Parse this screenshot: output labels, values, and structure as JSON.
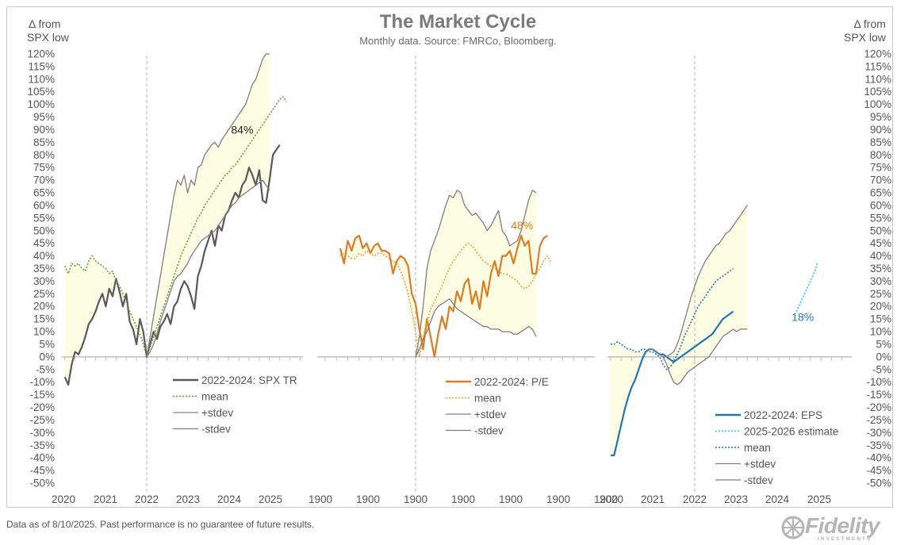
{
  "title": "The Market Cycle",
  "subtitle": "Monthly data.  Source: FMRCo, Bloomberg.",
  "y_axis_header_left": [
    "Δ from",
    "SPX low"
  ],
  "y_axis_header_right": [
    "Δ from",
    "SPX low"
  ],
  "footnote": "Data as of 8/10/2025. Past performance is no guarantee of future results.",
  "logo": {
    "name": "Fidelity",
    "tagline": "INVESTMENTS"
  },
  "colors": {
    "band": "#fdfde4",
    "spx": "#595959",
    "spx_mean": "#6b9a3a",
    "pe": "#e07b1f",
    "pe_mean": "#f0a030",
    "eps": "#1f77b4",
    "eps_estimate": "#33ccee",
    "eps_mean": "#1f77b4",
    "stdev": "#7f7f7f",
    "grid": "#bfbfbf"
  },
  "chart_data": [
    {
      "type": "line",
      "panel": "SPX total return",
      "x_tick_labels": [
        "2020",
        "2021",
        "2022",
        "2023",
        "2024",
        "2025"
      ],
      "ylim": [
        -50,
        120
      ],
      "y_tick_labels": [
        "120%",
        "115%",
        "110%",
        "105%",
        "100%",
        "95%",
        "90%",
        "85%",
        "80%",
        "75%",
        "70%",
        "65%",
        "60%",
        "55%",
        "50%",
        "45%",
        "40%",
        "35%",
        "30%",
        "25%",
        "20%",
        "15%",
        "10%",
        "5%",
        "0%",
        "-5%",
        "-10%",
        "-15%",
        "-20%",
        "-25%",
        "-30%",
        "-35%",
        "-40%",
        "-45%",
        "-50%"
      ],
      "legend": [
        "2022-2024: SPX TR",
        "mean",
        "+stdev",
        "-stdev"
      ],
      "annotation": {
        "text": "84%",
        "at_month": 28,
        "value": 84
      },
      "series": [
        {
          "name": "2022-2024: SPX TR",
          "x_start": -24,
          "values": [
            -8,
            -11,
            -3,
            2,
            1,
            4,
            8,
            13,
            15,
            18,
            22,
            25,
            20,
            27,
            24,
            31,
            26,
            20,
            25,
            14,
            11,
            5,
            15,
            10,
            0,
            5,
            10,
            7,
            12,
            14,
            17,
            13,
            20,
            22,
            27,
            30,
            28,
            24,
            19,
            32,
            36,
            42,
            46,
            50,
            44,
            52,
            50,
            56,
            58,
            62,
            65,
            63,
            68,
            70,
            75,
            72,
            68,
            74,
            62,
            61,
            70,
            80,
            82,
            84
          ]
        },
        {
          "name": "mean",
          "x_start": -24,
          "values": [
            36,
            33,
            37,
            36,
            37,
            35,
            34,
            38,
            40,
            38,
            37,
            36,
            35,
            33,
            34,
            30,
            28,
            25,
            22,
            18,
            15,
            12,
            9,
            5,
            0,
            4,
            8,
            12,
            16,
            20,
            24,
            28,
            32,
            36,
            40,
            43,
            46,
            49,
            52,
            55,
            57,
            60,
            62,
            64,
            66,
            68,
            70,
            72,
            73,
            75,
            76,
            78,
            80,
            82,
            84,
            86,
            88,
            90,
            92,
            94,
            96,
            98,
            100,
            102,
            103,
            101
          ]
        },
        {
          "name": "+stdev",
          "x_start": 0,
          "values": [
            0,
            8,
            16,
            24,
            32,
            40,
            48,
            56,
            64,
            70,
            68,
            72,
            65,
            70,
            68,
            75,
            76,
            80,
            82,
            84,
            85,
            83,
            86,
            88,
            90,
            92,
            94,
            96,
            98,
            100,
            104,
            108,
            110,
            114,
            118,
            120,
            120
          ]
        },
        {
          "name": "-stdev",
          "x_start": 0,
          "values": [
            0,
            2,
            5,
            9,
            14,
            18,
            22,
            26,
            30,
            32,
            33,
            35,
            37,
            40,
            42,
            44,
            46,
            47,
            48,
            49,
            50,
            52,
            54,
            56,
            58,
            60,
            61,
            63,
            64,
            65,
            66,
            67,
            68,
            69,
            70,
            68,
            66
          ]
        }
      ]
    },
    {
      "type": "line",
      "panel": "P/E",
      "x_tick_labels": [
        "1900",
        "1900",
        "1900",
        "1900",
        "1900",
        "1900",
        "1900"
      ],
      "ylim": [
        -50,
        120
      ],
      "legend": [
        "2022-2024: P/E",
        "mean",
        "+stdev",
        "-stdev"
      ],
      "annotation": {
        "text": "48%",
        "at_month": 27,
        "value": 48
      },
      "series": [
        {
          "name": "2022-2024: P/E",
          "x_start": -20,
          "values": [
            43,
            37,
            46,
            42,
            47,
            48,
            43,
            45,
            41,
            44,
            45,
            42,
            42,
            41,
            33,
            38,
            40,
            39,
            36,
            25,
            21,
            11,
            3,
            15,
            8,
            0,
            9,
            16,
            11,
            20,
            18,
            26,
            22,
            29,
            31,
            21,
            26,
            19,
            30,
            24,
            33,
            38,
            32,
            40,
            40,
            42,
            37,
            43,
            48,
            44,
            46,
            33,
            33,
            44,
            47,
            48
          ]
        },
        {
          "name": "mean",
          "x_start": -20,
          "values": [
            40,
            41,
            40,
            39,
            39,
            41,
            40,
            42,
            41,
            40,
            41,
            41,
            40,
            39,
            38,
            37,
            34,
            30,
            25,
            18,
            10,
            0,
            8,
            14,
            19,
            22,
            25,
            28,
            32,
            35,
            38,
            40,
            42,
            44,
            45,
            44,
            42,
            40,
            38,
            37,
            36,
            35,
            34,
            33,
            33,
            32,
            31,
            30,
            28,
            27,
            28,
            30,
            33,
            35,
            38,
            40,
            37
          ]
        },
        {
          "name": "+stdev",
          "x_start": 0,
          "values": [
            0,
            8,
            20,
            35,
            42,
            46,
            50,
            55,
            60,
            64,
            63,
            66,
            65,
            60,
            58,
            56,
            57,
            55,
            53,
            50,
            52,
            55,
            58,
            50,
            48,
            44,
            45,
            46,
            50,
            56,
            62,
            66,
            65
          ]
        },
        {
          "name": "-stdev",
          "x_start": 0,
          "values": [
            0,
            3,
            7,
            10,
            14,
            18,
            20,
            21,
            22,
            23,
            21,
            19,
            18,
            17,
            16,
            15,
            14,
            13,
            12,
            12,
            11,
            11,
            11,
            10,
            10,
            10,
            9,
            9,
            10,
            11,
            12,
            11,
            8
          ]
        }
      ]
    },
    {
      "type": "line",
      "panel": "EPS",
      "x_tick_labels": [
        "2020",
        "2021",
        "2022",
        "2023",
        "2024",
        "2025"
      ],
      "ylim": [
        -50,
        120
      ],
      "legend": [
        "2022-2024: EPS",
        "2025-2026 estimate",
        "mean",
        "+stdev",
        "-stdev"
      ],
      "annotation": {
        "text": "18%",
        "at_month": 29,
        "value": 18
      },
      "series": [
        {
          "name": "2022-2024: EPS",
          "x_start": -24,
          "values": [
            -39,
            -39,
            -33,
            -27,
            -21,
            -16,
            -12,
            -9,
            -5,
            -1,
            2,
            3,
            3,
            2,
            1,
            1,
            0,
            -1,
            -2,
            -1,
            0,
            1,
            2,
            3,
            4,
            5,
            6,
            7,
            8,
            9,
            11,
            13,
            15,
            16,
            17,
            18
          ]
        },
        {
          "name": "2025-2026 estimate",
          "x_start": 29,
          "values": [
            18,
            21,
            24,
            27,
            30,
            33,
            37
          ]
        },
        {
          "name": "mean",
          "x_start": -24,
          "values": [
            5,
            5,
            6,
            5,
            4,
            3,
            3,
            2,
            2,
            3,
            3,
            2,
            2,
            1,
            0,
            -3,
            -5,
            -4,
            -2,
            1,
            4,
            8,
            11,
            14,
            17,
            20,
            22,
            24,
            26,
            28,
            30,
            31,
            32,
            33,
            34,
            35
          ]
        },
        {
          "name": "+stdev",
          "x_start": -13,
          "values": [
            3,
            3,
            2,
            1,
            0,
            0,
            1,
            2,
            5,
            9,
            14,
            19,
            24,
            28,
            32,
            35,
            38,
            40,
            42,
            44,
            45,
            47,
            49,
            50,
            52,
            54,
            56,
            58,
            60
          ]
        },
        {
          "name": "-stdev",
          "x_start": -13,
          "values": [
            3,
            3,
            2,
            1,
            0,
            -3,
            -7,
            -10,
            -11,
            -10,
            -8,
            -6,
            -5,
            -4,
            -3,
            -2,
            -1,
            0,
            2,
            4,
            6,
            8,
            9,
            10,
            11,
            10,
            11,
            11,
            11
          ]
        }
      ]
    }
  ]
}
